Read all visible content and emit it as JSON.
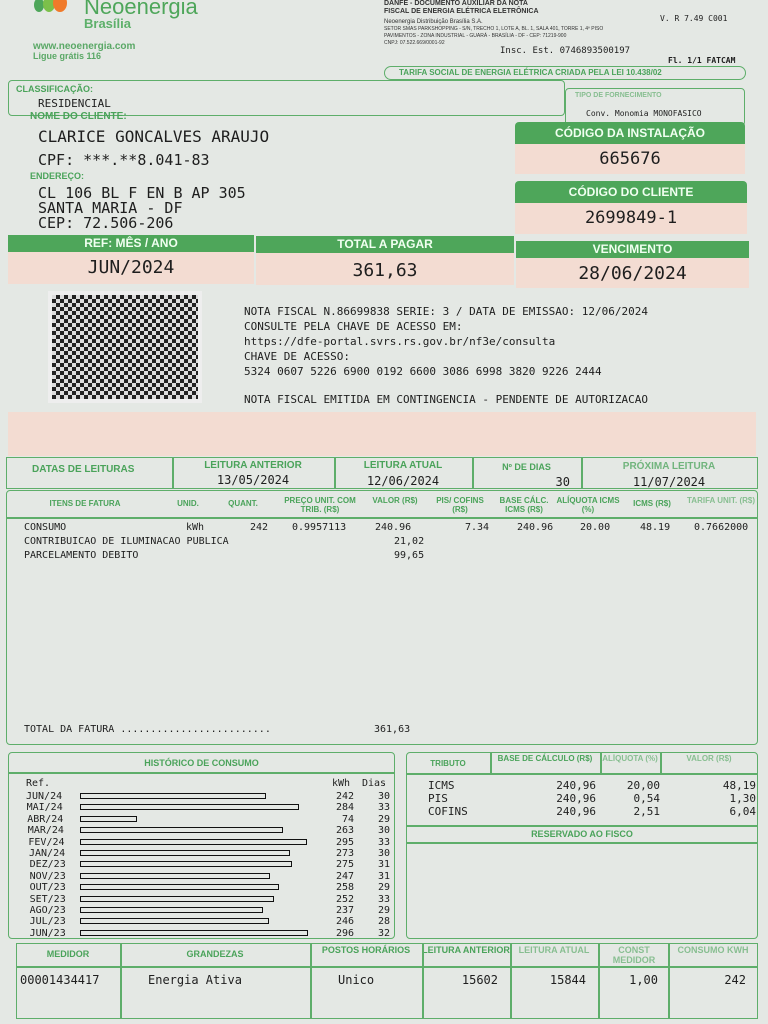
{
  "header": {
    "brand": "Neoenergia",
    "region": "Brasília",
    "website": "www.neoenergia.com",
    "phone": "Ligue grátis 116",
    "doc_title_1": "DANFE - DOCUMENTO AUXILIAR DA NOTA",
    "doc_title_2": "FISCAL DE ENERGIA ELÉTRICA ELETRÔNICA",
    "company": "Neoenergia Distribuição Brasília S.A.",
    "address_1": "SETOR SMAS PARKSHOPPING - S/N, TRECHO 1, LOTE A, BL. 1, SALA 401, TORRE 1, 4º PISO",
    "address_2": "PAVIMENTOS - ZONA INDUSTRIAL - GUARÁ - BRASÍLIA - DF - CEP: 71219-900",
    "cnpj": "CNPJ: 07.522.669/0001-92",
    "version": "V. R 7.49 C001",
    "insc": "Insc. Est. 0746893500197",
    "page": "Fl. 1/1 FATCAM",
    "tarifa_social": "TARIFA SOCIAL DE ENERGIA ELÉTRICA CRIADA PELA LEI 10.438/02"
  },
  "client": {
    "classificacao_label": "CLASSIFICAÇÃO:",
    "classificacao": "RESIDENCIAL",
    "tipo_label": "TIPO DE FORNECIMENTO",
    "tipo": "Conv. Monomia MONOFASICO",
    "nome_label": "NOME DO CLIENTE:",
    "nome": "CLARICE GONCALVES ARAUJO",
    "cpf": "CPF: ***.**8.041-83",
    "endereco_label": "ENDEREÇO:",
    "endereco_1": "CL 106 BL F EN B AP 305",
    "endereco_2": "SANTA MARIA - DF",
    "cep": "CEP: 72.506-206",
    "instalacao_label": "CÓDIGO DA INSTALAÇÃO",
    "instalacao": "665676",
    "cliente_label": "CÓDIGO DO CLIENTE",
    "cliente": "2699849-1"
  },
  "summary": {
    "ref_label": "REF: MÊS / ANO",
    "ref": "JUN/2024",
    "total_label": "TOTAL A PAGAR",
    "total": "361,63",
    "venc_label": "VENCIMENTO",
    "venc": "28/06/2024"
  },
  "nf": {
    "line1": "NOTA FISCAL N.86699838 SERIE: 3 / DATA DE EMISSAO: 12/06/2024",
    "line2": "CONSULTE PELA CHAVE DE ACESSO EM:",
    "line3": "https://dfe-portal.svrs.rs.gov.br/nf3e/consulta",
    "line4": "CHAVE DE ACESSO:",
    "line5": "5324 0607 5226 6900 0192 6600 3086 6998 3820 9226 2444",
    "line6": "NOTA FISCAL EMITIDA EM CONTINGENCIA - PENDENTE DE AUTORIZACAO"
  },
  "readings": {
    "label": "DATAS DE LEITURAS",
    "anterior_label": "LEITURA ANTERIOR",
    "anterior": "13/05/2024",
    "atual_label": "LEITURA ATUAL",
    "atual": "12/06/2024",
    "dias_label": "Nº DE DIAS",
    "dias": "30",
    "proxima_label": "PRÓXIMA LEITURA",
    "proxima": "11/07/2024"
  },
  "items": {
    "headers": [
      "ITENS DE FATURA",
      "UNID.",
      "QUANT.",
      "PREÇO UNIT. COM TRIB. (R$)",
      "VALOR (R$)",
      "PIS/ COFINS (R$)",
      "BASE CÁLC. ICMS (R$)",
      "ALÍQUOTA ICMS (%)",
      "ICMS (R$)",
      "TARIFA UNIT. (R$)"
    ],
    "rows": [
      [
        "CONSUMO",
        "kWh",
        "242",
        "0.9957113",
        "240.96",
        "7.34",
        "240.96",
        "20.00",
        "48.19",
        "0.7662000"
      ],
      [
        "CONTRIBUICAO DE ILUMINACAO PUBLICA",
        "",
        "",
        "",
        "21,02",
        "",
        "",
        "",
        "",
        ""
      ],
      [
        "PARCELAMENTO DEBITO",
        "",
        "",
        "",
        "99,65",
        "",
        "",
        "",
        "",
        ""
      ]
    ],
    "total_label": "TOTAL DA FATURA .........................",
    "total": "361,63"
  },
  "history": {
    "title": "HISTÓRICO DE CONSUMO",
    "ref_label": "Ref.",
    "kwh_label": "kWh",
    "dias_label": "Dias",
    "rows": [
      [
        "JUN/24",
        242,
        30
      ],
      [
        "MAI/24",
        284,
        33
      ],
      [
        "ABR/24",
        74,
        29
      ],
      [
        "MAR/24",
        263,
        30
      ],
      [
        "FEV/24",
        295,
        33
      ],
      [
        "JAN/24",
        273,
        30
      ],
      [
        "DEZ/23",
        275,
        31
      ],
      [
        "NOV/23",
        247,
        31
      ],
      [
        "OUT/23",
        258,
        29
      ],
      [
        "SET/23",
        252,
        33
      ],
      [
        "AGO/23",
        237,
        29
      ],
      [
        "JUL/23",
        246,
        28
      ],
      [
        "JUN/23",
        296,
        32
      ]
    ]
  },
  "tributos": {
    "headers": [
      "TRIBUTO",
      "BASE DE CÁLCULO (R$)",
      "ALÍQUOTA (%)",
      "VALOR (R$)"
    ],
    "rows": [
      [
        "ICMS",
        "240,96",
        "20,00",
        "48,19"
      ],
      [
        "PIS",
        "240,96",
        "0,54",
        "1,30"
      ],
      [
        "COFINS",
        "240,96",
        "2,51",
        "6,04"
      ]
    ],
    "reservado": "RESERVADO AO FISCO"
  },
  "meter": {
    "headers": [
      "MEDIDOR",
      "GRANDEZAS",
      "POSTOS HORÁRIOS",
      "LEITURA ANTERIOR",
      "LEITURA ATUAL",
      "CONST MEDIDOR",
      "CONSUMO kWh"
    ],
    "row": [
      "00001434417",
      "Energia Ativa",
      "Unico",
      "15602",
      "15844",
      "1,00",
      "242"
    ]
  },
  "colors": {
    "green": "#4ea65a",
    "pink": "#f3dcd2",
    "brand_orange": "#f07a2a"
  }
}
